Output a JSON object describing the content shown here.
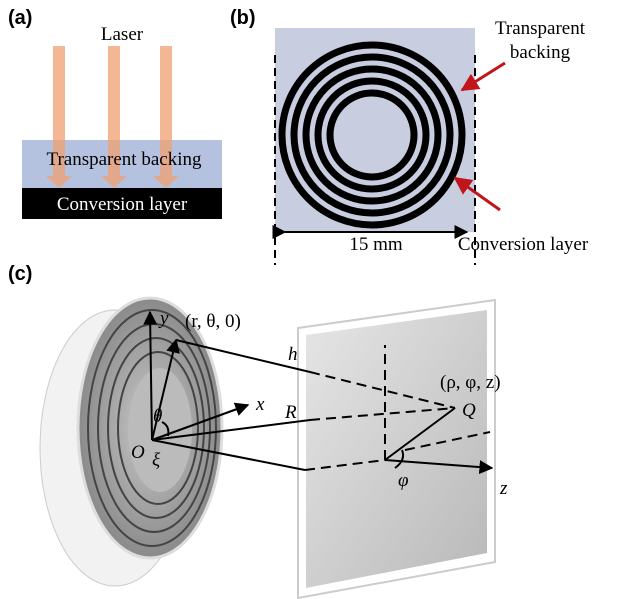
{
  "panel_a": {
    "label": "(a)",
    "laser": "Laser",
    "backing": "Transparent backing",
    "layer": "Conversion layer"
  },
  "panel_b": {
    "label": "(b)",
    "backing": [
      "Transparent",
      "backing"
    ],
    "layer": "Conversion layer",
    "scale": "15 mm"
  },
  "panel_c": {
    "label": "(c)",
    "axis_y": "y",
    "point_source": "(r, θ, 0)",
    "h": "h",
    "axis_x": "x",
    "theta": "θ",
    "R": "R",
    "origin": "O",
    "xi": "ξ",
    "point_field": "(ρ, φ, z)",
    "Q": "Q",
    "phi": "φ",
    "axis_z": "z"
  }
}
